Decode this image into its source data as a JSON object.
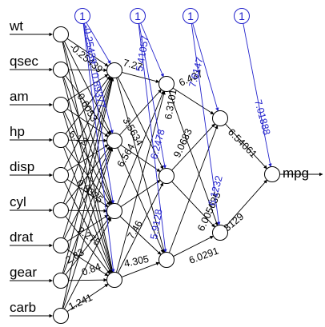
{
  "inputs": [
    "wt",
    "qsec",
    "am",
    "hp",
    "disp",
    "cyl",
    "drat",
    "gear",
    "carb"
  ],
  "output": "mpg",
  "bias_label": "1",
  "weights": {
    "input_hidden1": [
      "-0.25439",
      "0.6053",
      "6.12",
      "0.8375",
      "2.275",
      "2.83",
      "0.84",
      "1.241"
    ],
    "hidden1_hidden2": [
      "7.27",
      "3.5634",
      "6.564",
      "4.305",
      "7.46"
    ],
    "hidden2_hidden3": [
      "6.437",
      "6.3101",
      "9.0683",
      "6.005635",
      "6.0291"
    ],
    "hidden3_output": [
      "6.54061",
      "3129"
    ],
    "bias": [
      "-0.25439",
      "0.89377",
      "5.41057",
      "6.2478",
      "5.9128",
      "7.6147",
      "6.1232",
      "7.01888"
    ]
  }
}
